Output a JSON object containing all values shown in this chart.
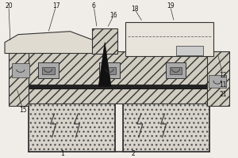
{
  "bg_color": "#f0ede8",
  "hatch_dark": "#555555",
  "dark_color": "#222222",
  "mid_color": "#888888",
  "light_color": "#cccccc",
  "white_color": "#ffffff",
  "hatch_fc": "#d0ccc0",
  "tank_fc": "#d8d4cc",
  "top_box_fc": "#e8e4dc",
  "hood_fc": "#e0dbd0"
}
